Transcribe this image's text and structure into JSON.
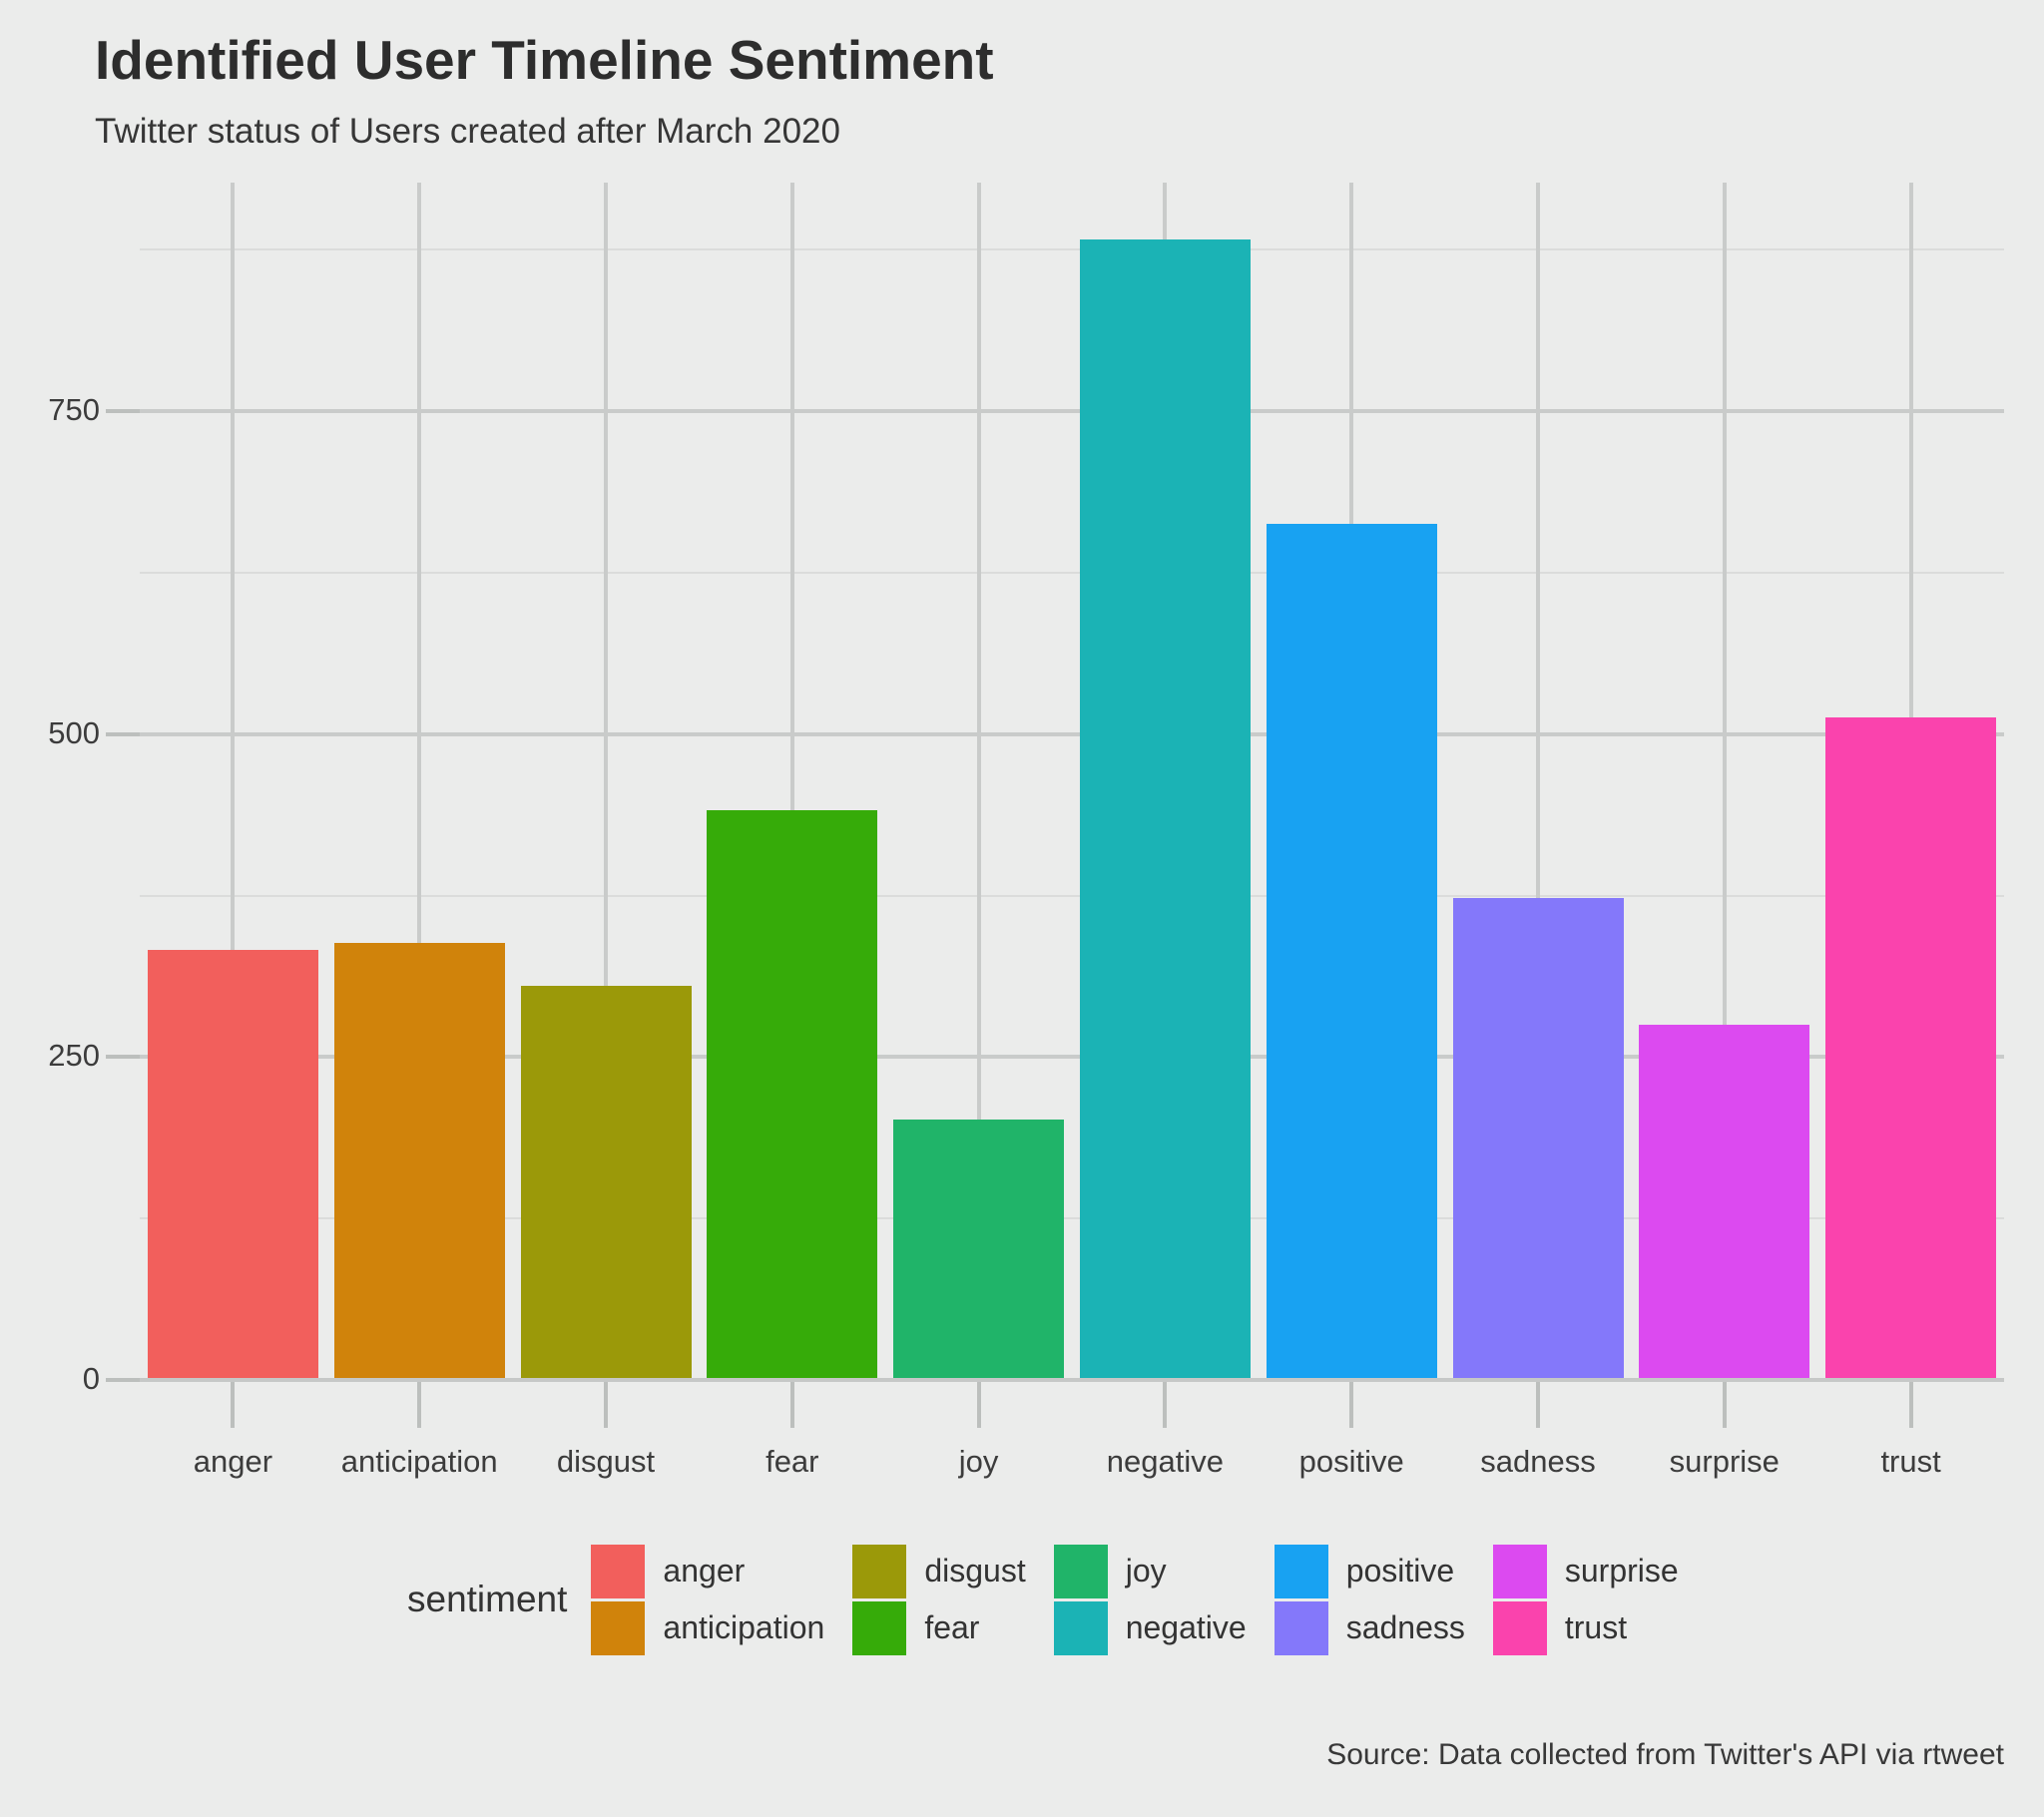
{
  "chart_data": {
    "type": "bar",
    "title": "Identified User Timeline Sentiment",
    "subtitle": "Twitter status of Users created after March 2020",
    "caption": "Source: Data collected from Twitter's API via rtweet",
    "categories": [
      "anger",
      "anticipation",
      "disgust",
      "fear",
      "joy",
      "negative",
      "positive",
      "sadness",
      "surprise",
      "trust"
    ],
    "values": [
      333,
      338,
      305,
      441,
      202,
      883,
      663,
      373,
      275,
      513
    ],
    "colors": [
      "#F25F5C",
      "#D0830B",
      "#9B9909",
      "#36AB09",
      "#20B469",
      "#1BB3B5",
      "#18A2F2",
      "#8478FA",
      "#DC4AF0",
      "#FA43AD"
    ],
    "xlabel": "",
    "ylabel": "",
    "yticks": [
      0,
      250,
      500,
      750
    ],
    "yticks_minor": [
      125,
      375,
      625,
      875
    ],
    "ylim": [
      0,
      927
    ],
    "grid": "major-and-minor",
    "panel_background": "#ebeceb",
    "gridline_color": "#c9cbca",
    "legend": {
      "title": "sentiment",
      "position": "bottom",
      "entries": [
        "anger",
        "anticipation",
        "disgust",
        "fear",
        "joy",
        "negative",
        "positive",
        "sadness",
        "surprise",
        "trust"
      ]
    }
  }
}
